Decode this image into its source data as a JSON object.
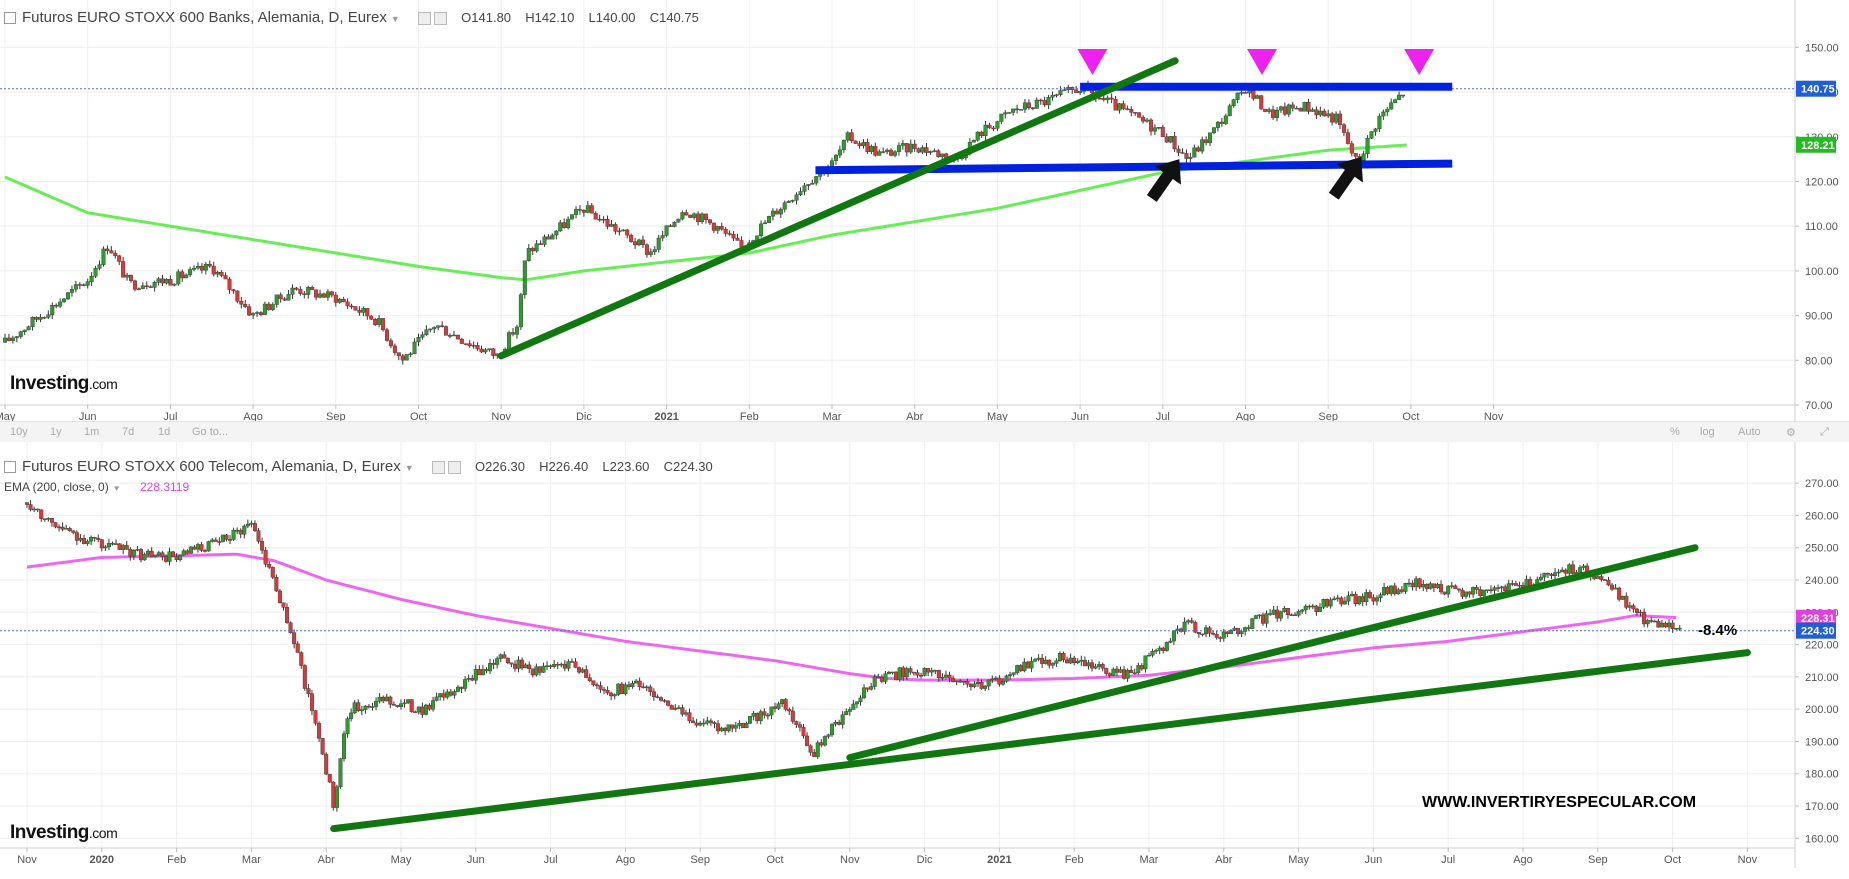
{
  "chart_data": [
    {
      "type": "candlestick",
      "title": "Futuros EURO STOXX 600 Banks, Alemania, D, Eurex",
      "ohlc": {
        "open": "O141.80",
        "high": "H142.10",
        "low": "L140.00",
        "close": "C140.75"
      },
      "x_ticks": [
        "May",
        "Jun",
        "Jul",
        "Ago",
        "Sep",
        "Oct",
        "Nov",
        "Dic",
        "2021",
        "Feb",
        "Mar",
        "Abr",
        "May",
        "Jun",
        "Jul",
        "Ago",
        "Sep",
        "Oct",
        "Nov"
      ],
      "ylim": [
        70,
        155
      ],
      "y_ticks": [
        70,
        80,
        90,
        100,
        110,
        120,
        130,
        140,
        150
      ],
      "y_tick_labels": [
        "70.00",
        "80.00",
        "90.00",
        "100.00",
        "110.00",
        "120.00",
        "130.00",
        "140.00",
        "150.00"
      ],
      "price_labels": [
        {
          "value": 140.75,
          "text": "140.75",
          "color": "#1e5fd8"
        },
        {
          "value": 128.21,
          "text": "128.21",
          "color": "#22bb22"
        }
      ],
      "anchors": [
        {
          "x": 0,
          "y": 84
        },
        {
          "x": 1,
          "y": 98
        },
        {
          "x": 1.25,
          "y": 106
        },
        {
          "x": 1.5,
          "y": 97
        },
        {
          "x": 2,
          "y": 98
        },
        {
          "x": 2.5,
          "y": 101
        },
        {
          "x": 3,
          "y": 90
        },
        {
          "x": 3.5,
          "y": 96
        },
        {
          "x": 4,
          "y": 94
        },
        {
          "x": 4.5,
          "y": 89
        },
        {
          "x": 4.8,
          "y": 80
        },
        {
          "x": 5.2,
          "y": 88
        },
        {
          "x": 5.6,
          "y": 84
        },
        {
          "x": 5.95,
          "y": 81
        },
        {
          "x": 6.2,
          "y": 88
        },
        {
          "x": 6.3,
          "y": 104
        },
        {
          "x": 6.6,
          "y": 108
        },
        {
          "x": 7,
          "y": 114
        },
        {
          "x": 7.5,
          "y": 108
        },
        {
          "x": 7.8,
          "y": 104
        },
        {
          "x": 8.2,
          "y": 114
        },
        {
          "x": 8.6,
          "y": 110
        },
        {
          "x": 8.9,
          "y": 105
        },
        {
          "x": 9.3,
          "y": 113
        },
        {
          "x": 9.7,
          "y": 120
        },
        {
          "x": 10,
          "y": 124
        },
        {
          "x": 10.2,
          "y": 130
        },
        {
          "x": 10.6,
          "y": 126
        },
        {
          "x": 11,
          "y": 128
        },
        {
          "x": 11.5,
          "y": 125
        },
        {
          "x": 11.8,
          "y": 131
        },
        {
          "x": 12.2,
          "y": 136
        },
        {
          "x": 12.6,
          "y": 138
        },
        {
          "x": 13,
          "y": 141
        },
        {
          "x": 13.4,
          "y": 137
        },
        {
          "x": 13.7,
          "y": 134
        },
        {
          "x": 14,
          "y": 131
        },
        {
          "x": 14.3,
          "y": 125
        },
        {
          "x": 14.6,
          "y": 131
        },
        {
          "x": 15,
          "y": 141
        },
        {
          "x": 15.3,
          "y": 135
        },
        {
          "x": 15.7,
          "y": 137
        },
        {
          "x": 16.1,
          "y": 134
        },
        {
          "x": 16.35,
          "y": 124
        },
        {
          "x": 16.6,
          "y": 134
        },
        {
          "x": 16.95,
          "y": 140.75
        }
      ],
      "ma": {
        "color": "#66ee55",
        "anchors": [
          {
            "x": 0,
            "y": 121
          },
          {
            "x": 1,
            "y": 113
          },
          {
            "x": 2,
            "y": 110
          },
          {
            "x": 3,
            "y": 107
          },
          {
            "x": 4,
            "y": 104
          },
          {
            "x": 5,
            "y": 101
          },
          {
            "x": 6,
            "y": 98.5
          },
          {
            "x": 6.3,
            "y": 98
          },
          {
            "x": 7,
            "y": 100
          },
          {
            "x": 8,
            "y": 102
          },
          {
            "x": 9,
            "y": 104
          },
          {
            "x": 10,
            "y": 108
          },
          {
            "x": 11,
            "y": 111
          },
          {
            "x": 12,
            "y": 114
          },
          {
            "x": 13,
            "y": 118
          },
          {
            "x": 14,
            "y": 122
          },
          {
            "x": 15,
            "y": 124.5
          },
          {
            "x": 16,
            "y": 127
          },
          {
            "x": 17,
            "y": 128.21
          }
        ]
      },
      "annotations": {
        "trendlines": [
          {
            "from": {
              "x": 6,
              "y": 81
            },
            "to": {
              "x": 14.15,
              "y": 147
            },
            "color": "#117711"
          }
        ],
        "levels": [
          {
            "from": {
              "x": 13,
              "y": 141.2
            },
            "to": {
              "x": 17.5,
              "y": 141.2
            },
            "color": "#0022dd"
          },
          {
            "from": {
              "x": 9.8,
              "y": 122.5
            },
            "to": {
              "x": 17.5,
              "y": 124
            },
            "color": "#0022dd"
          }
        ],
        "markers_down": [
          {
            "x": 13.15,
            "y": 146.5
          },
          {
            "x": 15.2,
            "y": 146.5
          },
          {
            "x": 17.1,
            "y": 146.5
          }
        ],
        "arrows_up": [
          {
            "x": 14.2,
            "y": 125
          },
          {
            "x": 16.4,
            "y": 125.5
          }
        ],
        "current_price_line": 140.75
      },
      "watermark": {
        "brand": "Investing",
        "suffix": ".com"
      }
    },
    {
      "type": "candlestick",
      "title": "Futuros EURO STOXX 600 Telecom, Alemania, D, Eurex",
      "ohlc": {
        "open": "O226.30",
        "high": "H226.40",
        "low": "L223.60",
        "close": "C224.30"
      },
      "ema_label": "EMA (200, close, 0)",
      "ema_value": "228.3119",
      "x_ticks": [
        "Nov",
        "2020",
        "Feb",
        "Mar",
        "Abr",
        "May",
        "Jun",
        "Jul",
        "Ago",
        "Sep",
        "Oct",
        "Nov",
        "Dic",
        "2021",
        "Feb",
        "Mar",
        "Abr",
        "May",
        "Jun",
        "Jul",
        "Ago",
        "Sep",
        "Oct",
        "Nov"
      ],
      "ylim": [
        157,
        275
      ],
      "y_ticks": [
        160,
        170,
        180,
        190,
        200,
        210,
        220,
        230,
        240,
        250,
        260,
        270
      ],
      "y_tick_labels": [
        "160.00",
        "170.00",
        "180.00",
        "190.00",
        "200.00",
        "210.00",
        "220.00",
        "230.00",
        "240.00",
        "250.00",
        "260.00",
        "270.00"
      ],
      "price_labels": [
        {
          "value": 228.31,
          "text": "228.31",
          "color": "#e040e0"
        },
        {
          "value": 224.3,
          "text": "224.30",
          "color": "#1e5fd8"
        }
      ],
      "anchors": [
        {
          "x": 0,
          "y": 264
        },
        {
          "x": 0.5,
          "y": 255
        },
        {
          "x": 1,
          "y": 251
        },
        {
          "x": 1.5,
          "y": 248
        },
        {
          "x": 2,
          "y": 247
        },
        {
          "x": 2.6,
          "y": 252
        },
        {
          "x": 3.0,
          "y": 258
        },
        {
          "x": 3.3,
          "y": 240
        },
        {
          "x": 3.6,
          "y": 218
        },
        {
          "x": 3.9,
          "y": 192
        },
        {
          "x": 4.1,
          "y": 170
        },
        {
          "x": 4.3,
          "y": 200
        },
        {
          "x": 4.8,
          "y": 203
        },
        {
          "x": 5.3,
          "y": 200
        },
        {
          "x": 5.8,
          "y": 207
        },
        {
          "x": 6.3,
          "y": 216
        },
        {
          "x": 6.8,
          "y": 212
        },
        {
          "x": 7.3,
          "y": 215
        },
        {
          "x": 7.7,
          "y": 205
        },
        {
          "x": 8.2,
          "y": 208
        },
        {
          "x": 8.7,
          "y": 199
        },
        {
          "x": 9.3,
          "y": 193
        },
        {
          "x": 9.7,
          "y": 197
        },
        {
          "x": 10.1,
          "y": 202
        },
        {
          "x": 10.5,
          "y": 186
        },
        {
          "x": 10.9,
          "y": 198
        },
        {
          "x": 11.3,
          "y": 209
        },
        {
          "x": 11.8,
          "y": 212
        },
        {
          "x": 12.3,
          "y": 210
        },
        {
          "x": 12.8,
          "y": 207
        },
        {
          "x": 13.3,
          "y": 213
        },
        {
          "x": 13.8,
          "y": 216
        },
        {
          "x": 14.3,
          "y": 213
        },
        {
          "x": 14.7,
          "y": 210
        },
        {
          "x": 15.1,
          "y": 218
        },
        {
          "x": 15.5,
          "y": 226
        },
        {
          "x": 16,
          "y": 223
        },
        {
          "x": 16.5,
          "y": 228
        },
        {
          "x": 17,
          "y": 231
        },
        {
          "x": 17.5,
          "y": 233
        },
        {
          "x": 18,
          "y": 235
        },
        {
          "x": 18.5,
          "y": 239
        },
        {
          "x": 19,
          "y": 237
        },
        {
          "x": 19.5,
          "y": 236
        },
        {
          "x": 20,
          "y": 238
        },
        {
          "x": 20.5,
          "y": 244
        },
        {
          "x": 21,
          "y": 242
        },
        {
          "x": 21.3,
          "y": 235
        },
        {
          "x": 21.6,
          "y": 228
        },
        {
          "x": 21.9,
          "y": 226
        },
        {
          "x": 22.1,
          "y": 224.3
        }
      ],
      "ma": {
        "color": "#ee66ee",
        "anchors": [
          {
            "x": 0,
            "y": 244
          },
          {
            "x": 1,
            "y": 247
          },
          {
            "x": 2,
            "y": 247.5
          },
          {
            "x": 2.8,
            "y": 248
          },
          {
            "x": 3.3,
            "y": 246
          },
          {
            "x": 4,
            "y": 240
          },
          {
            "x": 5,
            "y": 234
          },
          {
            "x": 6,
            "y": 229
          },
          {
            "x": 7,
            "y": 225
          },
          {
            "x": 8,
            "y": 221
          },
          {
            "x": 9,
            "y": 218
          },
          {
            "x": 10,
            "y": 215
          },
          {
            "x": 11,
            "y": 211
          },
          {
            "x": 11.5,
            "y": 209.5
          },
          {
            "x": 12,
            "y": 209
          },
          {
            "x": 13,
            "y": 209
          },
          {
            "x": 14,
            "y": 209.5
          },
          {
            "x": 15,
            "y": 210.5
          },
          {
            "x": 16,
            "y": 213
          },
          {
            "x": 17,
            "y": 216
          },
          {
            "x": 18,
            "y": 219
          },
          {
            "x": 19,
            "y": 221
          },
          {
            "x": 20,
            "y": 224
          },
          {
            "x": 21,
            "y": 227
          },
          {
            "x": 21.5,
            "y": 229
          },
          {
            "x": 22.1,
            "y": 228.31
          }
        ]
      },
      "annotations": {
        "trendlines": [
          {
            "from": {
              "x": 4.1,
              "y": 163
            },
            "to": {
              "x": 23.0,
              "y": 217.5
            },
            "color": "#117711"
          },
          {
            "from": {
              "x": 11.0,
              "y": 185
            },
            "to": {
              "x": 22.3,
              "y": 250
            },
            "color": "#117711"
          }
        ],
        "current_price_line": 224.3
      },
      "note": "-8.4%",
      "website": "WWW.INVERTIRYESPECULAR.COM",
      "watermark": {
        "brand": "Investing",
        "suffix": ".com"
      }
    }
  ],
  "toolbar": {
    "items": [
      "10y",
      "1y",
      "1m",
      "7d",
      "1d",
      "Go to..."
    ],
    "right": [
      "%",
      "log",
      "Auto"
    ]
  }
}
